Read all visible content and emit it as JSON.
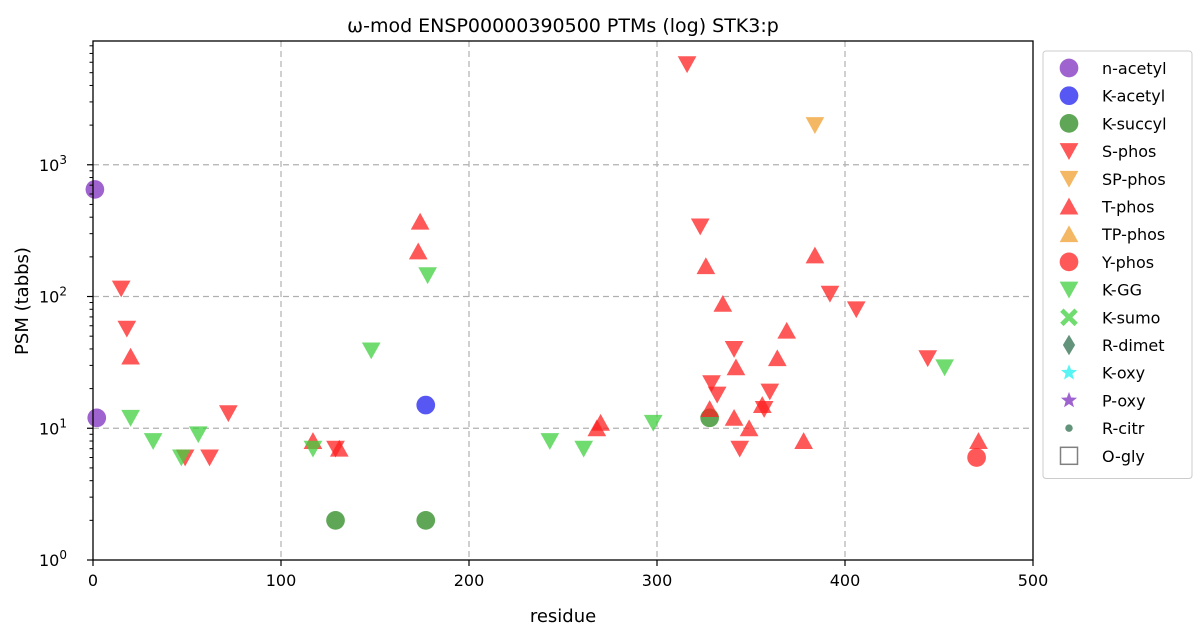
{
  "chart_data": {
    "type": "scatter",
    "title": "ω-mod ENSP00000390500 PTMs (log) STK3:p",
    "xlabel": "residue",
    "ylabel": "PSM (tabbs)",
    "xlim": [
      0,
      500
    ],
    "ylim": [
      1,
      8700
    ],
    "yscale": "log",
    "grid": true,
    "legend_position": "outside-right-top",
    "x_ticks": [
      {
        "value": 0,
        "label": "0"
      },
      {
        "value": 100,
        "label": "100"
      },
      {
        "value": 200,
        "label": "200"
      },
      {
        "value": 300,
        "label": "300"
      },
      {
        "value": 400,
        "label": "400"
      },
      {
        "value": 500,
        "label": "500"
      }
    ],
    "y_ticks": [
      {
        "value": 1,
        "base": "10",
        "exp": "0"
      },
      {
        "value": 10,
        "base": "10",
        "exp": "1"
      },
      {
        "value": 100,
        "base": "10",
        "exp": "2"
      },
      {
        "value": 1000,
        "base": "10",
        "exp": "3"
      }
    ],
    "series": [
      {
        "name": "n-acetyl",
        "marker": "circle",
        "color": "#7f2fbf",
        "points": [
          [
            1,
            650
          ],
          [
            2,
            12
          ]
        ]
      },
      {
        "name": "K-acetyl",
        "marker": "circle",
        "color": "#1f1fef",
        "points": [
          [
            177,
            15
          ]
        ]
      },
      {
        "name": "K-succyl",
        "marker": "circle",
        "color": "#2a8a1f",
        "points": [
          [
            129,
            2
          ],
          [
            177,
            2
          ],
          [
            328,
            12
          ]
        ]
      },
      {
        "name": "S-phos",
        "marker": "triangle-down",
        "color": "#ff2020",
        "points": [
          [
            15,
            115
          ],
          [
            18,
            57
          ],
          [
            49,
            6
          ],
          [
            62,
            6
          ],
          [
            72,
            13
          ],
          [
            129,
            7
          ],
          [
            316,
            5800
          ],
          [
            323,
            340
          ],
          [
            329,
            22
          ],
          [
            332,
            18
          ],
          [
            341,
            40
          ],
          [
            344,
            7
          ],
          [
            357,
            14
          ],
          [
            360,
            19
          ],
          [
            392,
            105
          ],
          [
            406,
            80
          ],
          [
            444,
            34
          ]
        ]
      },
      {
        "name": "SP-phos",
        "marker": "triangle-down",
        "color": "#f0a030",
        "points": [
          [
            384,
            2000
          ]
        ]
      },
      {
        "name": "T-phos",
        "marker": "triangle-up",
        "color": "#ff2020",
        "points": [
          [
            20,
            35
          ],
          [
            117,
            8
          ],
          [
            131,
            7
          ],
          [
            173,
            220
          ],
          [
            174,
            370
          ],
          [
            268,
            10
          ],
          [
            270,
            11
          ],
          [
            326,
            170
          ],
          [
            328,
            14
          ],
          [
            335,
            88
          ],
          [
            341,
            12
          ],
          [
            342,
            29
          ],
          [
            349,
            10
          ],
          [
            356,
            15
          ],
          [
            364,
            34
          ],
          [
            369,
            55
          ],
          [
            378,
            8
          ],
          [
            384,
            205
          ],
          [
            471,
            8
          ]
        ]
      },
      {
        "name": "TP-phos",
        "marker": "triangle-up",
        "color": "#f0a030",
        "points": []
      },
      {
        "name": "Y-phos",
        "marker": "circle",
        "color": "#ff2020",
        "points": [
          [
            470,
            6
          ]
        ]
      },
      {
        "name": "K-GG",
        "marker": "triangle-down",
        "color": "#40d040",
        "points": [
          [
            20,
            12
          ],
          [
            32,
            8
          ],
          [
            47,
            6
          ],
          [
            56,
            9
          ],
          [
            117,
            7
          ],
          [
            148,
            39
          ],
          [
            178,
            145
          ],
          [
            243,
            8
          ],
          [
            261,
            7
          ],
          [
            298,
            11
          ],
          [
            453,
            29
          ]
        ]
      },
      {
        "name": "K-sumo",
        "marker": "x",
        "color": "#40d040",
        "points": []
      },
      {
        "name": "R-dimet",
        "marker": "thin-diamond",
        "color": "#2f6f4f",
        "points": []
      },
      {
        "name": "K-oxy",
        "marker": "star",
        "color": "#20f0f0",
        "points": []
      },
      {
        "name": "P-oxy",
        "marker": "star",
        "color": "#7f2fbf",
        "points": []
      },
      {
        "name": "R-citr",
        "marker": "small-dot",
        "color": "#2f6f4f",
        "points": []
      },
      {
        "name": "O-gly",
        "marker": "square-open",
        "color": "#555555",
        "points": []
      }
    ]
  }
}
